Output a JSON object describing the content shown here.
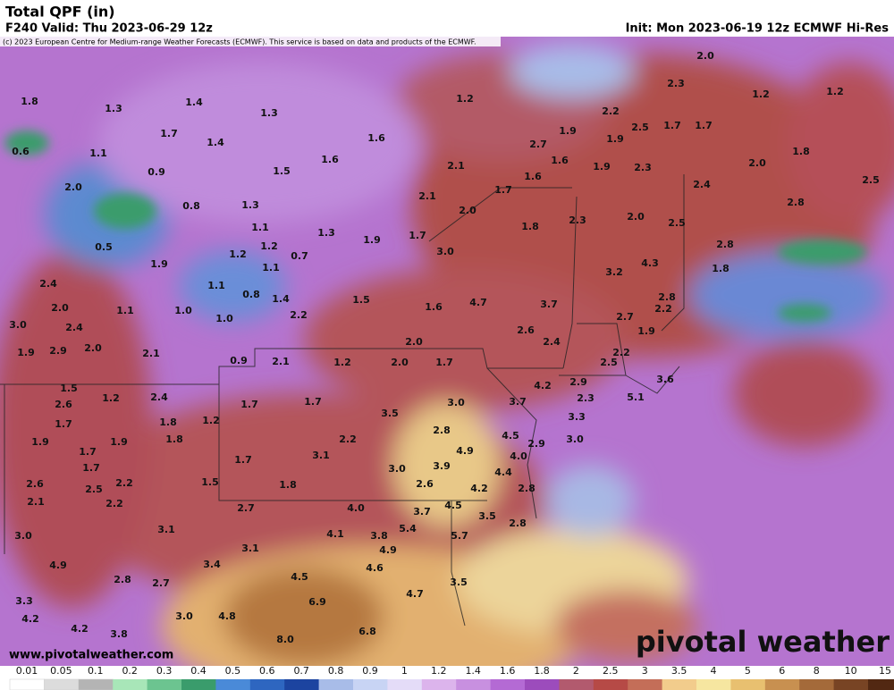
{
  "header": {
    "title": "Total QPF (in)",
    "valid": "F240 Valid: Thu 2023-06-29 12z",
    "init": "Init: Mon 2023-06-19 12z ECMWF Hi-Res",
    "copyright": "(c) 2023 European Centre for Medium-range Weather Forecasts (ECMWF). This service is based on data and products of the ECMWF."
  },
  "map": {
    "labels": [
      "2.0",
      "2.3",
      "1.2",
      "1.2",
      "1.2",
      "1.8",
      "1.3",
      "1.4",
      "1.3",
      "2.2",
      "1.7",
      "1.9",
      "2.5",
      "1.7",
      "1.7",
      "1.6",
      "1.4",
      "2.7",
      "1.9",
      "1.8",
      "0.6",
      "1.1",
      "1.6",
      "1.6",
      "2.0",
      "0.9",
      "1.5",
      "2.1",
      "1.6",
      "1.9",
      "2.3",
      "2.0",
      "1.7",
      "2.4",
      "2.5",
      "2.1",
      "0.8",
      "1.3",
      "2.0",
      "2.3",
      "2.0",
      "2.8",
      "1.8",
      "2.5",
      "1.1",
      "1.3",
      "1.9",
      "1.7",
      "0.5",
      "1.2",
      "1.2",
      "0.7",
      "3.0",
      "2.8",
      "1.9",
      "1.1",
      "4.3",
      "1.8",
      "3.2",
      "2.4",
      "1.1",
      "0.8",
      "1.4",
      "1.5",
      "2.8",
      "4.7",
      "3.7",
      "1.6",
      "2.0",
      "1.1",
      "1.0",
      "2.2",
      "2.7",
      "2.2",
      "3.0",
      "2.4",
      "1.0",
      "2.6",
      "1.9",
      "2.0",
      "2.4",
      "1.9",
      "2.9",
      "2.0",
      "2.1",
      "2.2",
      "0.9",
      "2.1",
      "1.2",
      "2.0",
      "1.7",
      "2.5",
      "1.5",
      "1.2",
      "2.4",
      "4.2",
      "2.9",
      "5.1",
      "3.6",
      "2.6",
      "2.3",
      "3.0",
      "3.7",
      "1.7",
      "1.7",
      "3.5",
      "3.3",
      "1.7",
      "1.8",
      "1.2",
      "2.8",
      "4.5",
      "1.9",
      "1.9",
      "1.8",
      "2.2",
      "3.0",
      "2.9",
      "1.7",
      "4.9",
      "1.7",
      "1.7",
      "3.1",
      "4.0",
      "3.9",
      "3.0",
      "4.4",
      "2.6",
      "2.5",
      "2.2",
      "1.5",
      "1.8",
      "2.6",
      "4.2",
      "2.8",
      "2.1",
      "2.2",
      "2.7",
      "4.0",
      "3.7",
      "4.5",
      "3.5",
      "2.8",
      "3.1",
      "5.4",
      "3.0",
      "4.1",
      "3.8",
      "5.7",
      "3.1",
      "4.9",
      "4.9",
      "3.4",
      "2.8",
      "2.7",
      "4.5",
      "4.6",
      "3.5",
      "3.3",
      "4.7",
      "6.9",
      "4.2",
      "3.0",
      "4.8",
      "4.2",
      "3.8",
      "8.0",
      "6.8"
    ]
  },
  "colorbar": {
    "labels": [
      "0.01",
      "0.05",
      "0.1",
      "0.2",
      "0.3",
      "0.4",
      "0.5",
      "0.6",
      "0.7",
      "0.8",
      "0.9",
      "1",
      "1.2",
      "1.4",
      "1.6",
      "1.8",
      "2",
      "2.5",
      "3",
      "3.5",
      "4",
      "5",
      "6",
      "8",
      "10",
      "15"
    ],
    "colors": [
      "#ffffff",
      "#dcdcdc",
      "#b4b4b4",
      "#a8e6b8",
      "#6cc490",
      "#3a9c6c",
      "#4a8ad8",
      "#2e66c0",
      "#1c44a0",
      "#a8bce8",
      "#c8d4f4",
      "#e4dcf8",
      "#dcb4ec",
      "#c890e0",
      "#b46ad4",
      "#9c4cbc",
      "#b25a6e",
      "#b64a46",
      "#c46e58",
      "#f2cc8c",
      "#f6e6a0",
      "#e8c070",
      "#c89050",
      "#a46a3a",
      "#784424",
      "#522812"
    ]
  },
  "footer": {
    "url": "www.pivotalweather.com",
    "logo": "pivotal weather"
  }
}
